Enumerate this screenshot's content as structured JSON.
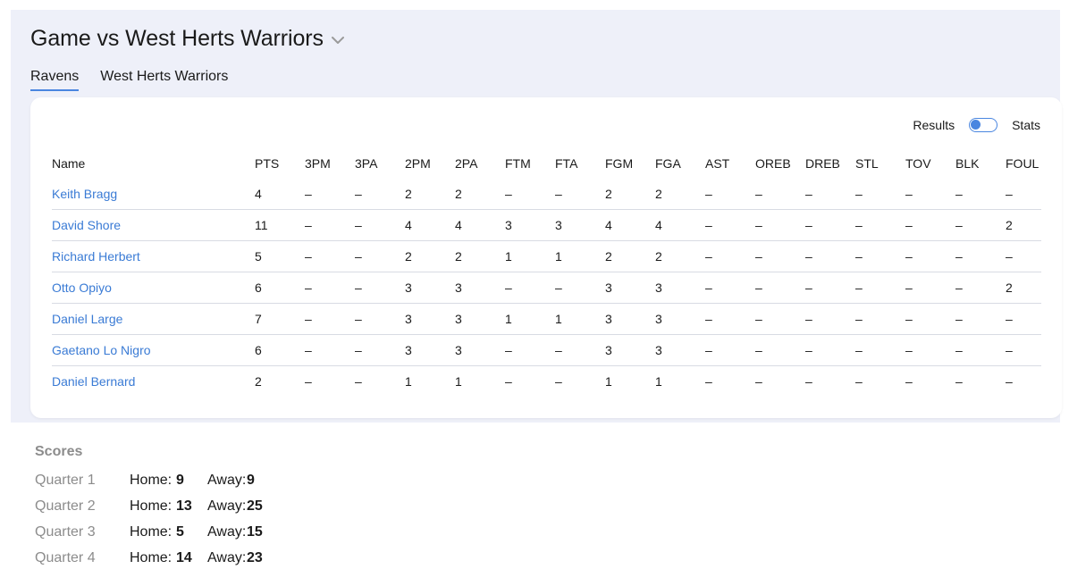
{
  "header": {
    "title": "Game vs West Herts Warriors"
  },
  "tabs": [
    {
      "label": "Ravens",
      "active": true
    },
    {
      "label": "West Herts Warriors",
      "active": false
    }
  ],
  "toggle": {
    "left_label": "Results",
    "right_label": "Stats"
  },
  "table": {
    "columns": [
      "Name",
      "PTS",
      "3PM",
      "3PA",
      "2PM",
      "2PA",
      "FTM",
      "FTA",
      "FGM",
      "FGA",
      "AST",
      "OREB",
      "DREB",
      "STL",
      "TOV",
      "BLK",
      "FOUL"
    ],
    "rows": [
      [
        "Keith Bragg",
        "4",
        "–",
        "–",
        "2",
        "2",
        "–",
        "–",
        "2",
        "2",
        "–",
        "–",
        "–",
        "–",
        "–",
        "–",
        "–"
      ],
      [
        "David Shore",
        "11",
        "–",
        "–",
        "4",
        "4",
        "3",
        "3",
        "4",
        "4",
        "–",
        "–",
        "–",
        "–",
        "–",
        "–",
        "2"
      ],
      [
        "Richard Herbert",
        "5",
        "–",
        "–",
        "2",
        "2",
        "1",
        "1",
        "2",
        "2",
        "–",
        "–",
        "–",
        "–",
        "–",
        "–",
        "–"
      ],
      [
        "Otto Opiyo",
        "6",
        "–",
        "–",
        "3",
        "3",
        "–",
        "–",
        "3",
        "3",
        "–",
        "–",
        "–",
        "–",
        "–",
        "–",
        "2"
      ],
      [
        "Daniel Large",
        "7",
        "–",
        "–",
        "3",
        "3",
        "1",
        "1",
        "3",
        "3",
        "–",
        "–",
        "–",
        "–",
        "–",
        "–",
        "–"
      ],
      [
        "Gaetano Lo Nigro",
        "6",
        "–",
        "–",
        "3",
        "3",
        "–",
        "–",
        "3",
        "3",
        "–",
        "–",
        "–",
        "–",
        "–",
        "–",
        "–"
      ],
      [
        "Daniel Bernard",
        "2",
        "–",
        "–",
        "1",
        "1",
        "–",
        "–",
        "1",
        "1",
        "–",
        "–",
        "–",
        "–",
        "–",
        "–",
        "–"
      ]
    ]
  },
  "scores": {
    "title": "Scores",
    "home_label": "Home:",
    "away_label": "Away:",
    "quarters": [
      {
        "label": "Quarter 1",
        "home": "9",
        "away": "9"
      },
      {
        "label": "Quarter 2",
        "home": "13",
        "away": "25"
      },
      {
        "label": "Quarter 3",
        "home": "5",
        "away": "15"
      },
      {
        "label": "Quarter 4",
        "home": "14",
        "away": "23"
      }
    ]
  },
  "colors": {
    "accent": "#4a86e0",
    "link": "#3a7bd5",
    "panel_bg": "#eef0f9"
  }
}
